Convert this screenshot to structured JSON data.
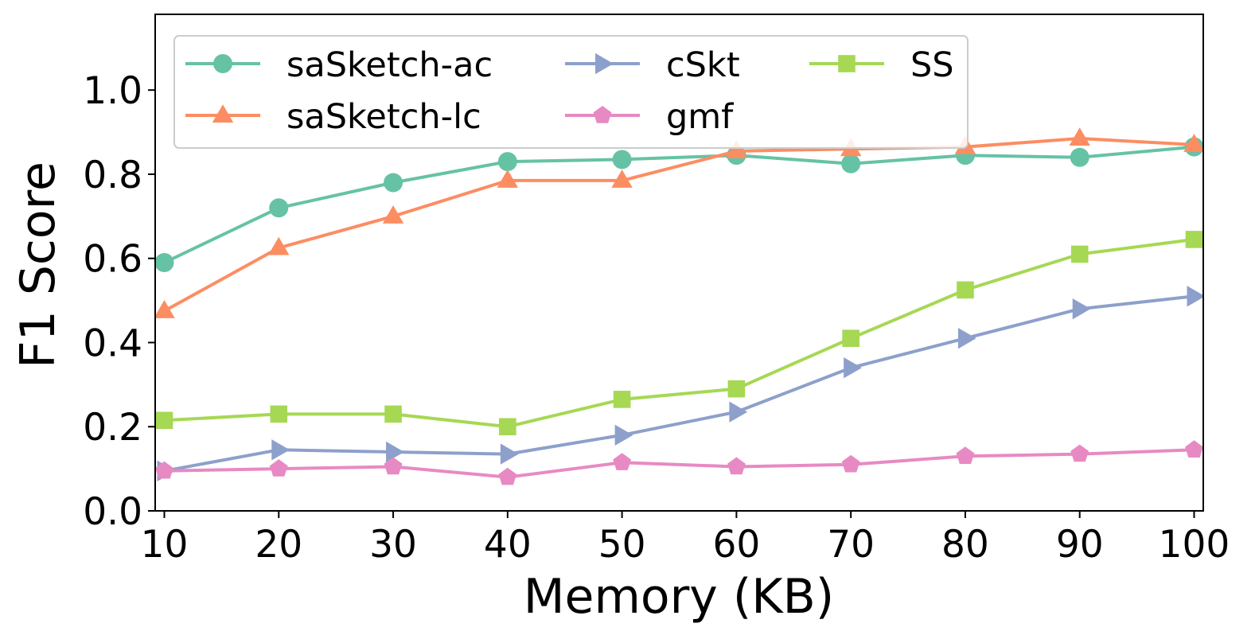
{
  "chart_data": {
    "type": "line",
    "title": "",
    "xlabel": "Memory (KB)",
    "ylabel": "F1 Score",
    "x": [
      10,
      20,
      30,
      40,
      50,
      60,
      70,
      80,
      90,
      100
    ],
    "xlim": [
      9.2,
      100.8
    ],
    "ylim": [
      0.0,
      1.18
    ],
    "xticks": [
      10,
      20,
      30,
      40,
      50,
      60,
      70,
      80,
      90,
      100
    ],
    "yticks": [
      0.0,
      0.2,
      0.4,
      0.6,
      0.8,
      1.0
    ],
    "legend_position": "top-left",
    "grid": false,
    "series": [
      {
        "name": "saSketch-ac",
        "color": "#66c2a5",
        "marker": "circle",
        "values": [
          0.59,
          0.72,
          0.78,
          0.83,
          0.835,
          0.845,
          0.825,
          0.845,
          0.84,
          0.865
        ]
      },
      {
        "name": "saSketch-lc",
        "color": "#fc8d62",
        "marker": "triangle-up",
        "values": [
          0.475,
          0.625,
          0.7,
          0.785,
          0.785,
          0.855,
          0.86,
          0.865,
          0.885,
          0.87
        ]
      },
      {
        "name": "cSkt",
        "color": "#8da0cb",
        "marker": "triangle-right",
        "values": [
          0.095,
          0.145,
          0.14,
          0.135,
          0.18,
          0.235,
          0.34,
          0.41,
          0.48,
          0.51
        ]
      },
      {
        "name": "gmf",
        "color": "#e78ac3",
        "marker": "pentagon",
        "values": [
          0.095,
          0.1,
          0.105,
          0.08,
          0.115,
          0.105,
          0.11,
          0.13,
          0.135,
          0.145
        ]
      },
      {
        "name": "SS",
        "color": "#a6d854",
        "marker": "square",
        "values": [
          0.215,
          0.23,
          0.23,
          0.2,
          0.265,
          0.29,
          0.41,
          0.525,
          0.61,
          0.645
        ]
      }
    ]
  }
}
